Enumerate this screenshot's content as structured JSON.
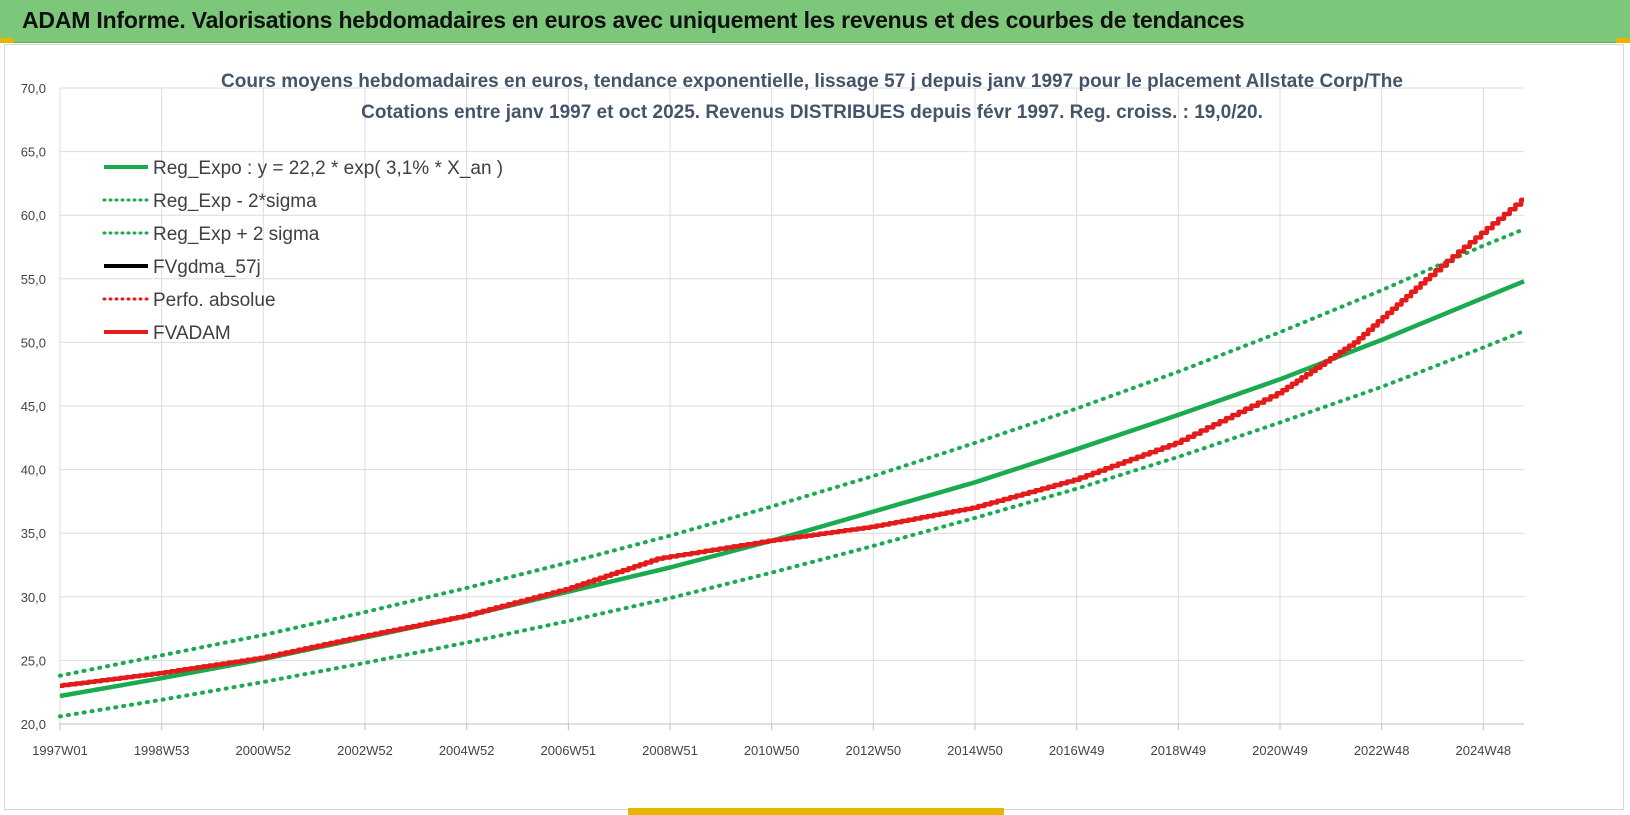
{
  "banner": {
    "title": "ADAM Informe. Valorisations hebdomadaires en euros avec uniquement les revenus et des courbes de tendances"
  },
  "chart_data": {
    "type": "line",
    "title": "Cours moyens hebdomadaires en euros, tendance exponentielle, lissage 57 j depuis janv 1997 pour le placement Allstate Corp/The",
    "subtitle": "Cotations entre janv 1997 et oct 2025. Revenus DISTRIBUES depuis févr 1997. Reg. croiss. : 19,0/20.",
    "xlabel": "",
    "ylabel": "",
    "ylim": [
      20,
      70
    ],
    "yticks": [
      "20,0",
      "25,0",
      "30,0",
      "35,0",
      "40,0",
      "45,0",
      "50,0",
      "55,0",
      "60,0",
      "65,0",
      "70,0"
    ],
    "xlim": [
      1997.0,
      2025.8
    ],
    "xticks": [
      {
        "label": "1997W01",
        "x": 1997.0
      },
      {
        "label": "1998W53",
        "x": 1999.0
      },
      {
        "label": "2000W52",
        "x": 2001.0
      },
      {
        "label": "2002W52",
        "x": 2003.0
      },
      {
        "label": "2004W52",
        "x": 2005.0
      },
      {
        "label": "2006W51",
        "x": 2007.0
      },
      {
        "label": "2008W51",
        "x": 2009.0
      },
      {
        "label": "2010W50",
        "x": 2011.0
      },
      {
        "label": "2012W50",
        "x": 2013.0
      },
      {
        "label": "2014W50",
        "x": 2015.0
      },
      {
        "label": "2016W49",
        "x": 2017.0
      },
      {
        "label": "2018W49",
        "x": 2019.0
      },
      {
        "label": "2020W49",
        "x": 2021.0
      },
      {
        "label": "2022W48",
        "x": 2023.0
      },
      {
        "label": "2024W48",
        "x": 2025.0
      }
    ],
    "grid": true,
    "legend_position": "top-left",
    "series": [
      {
        "name": "Reg_Expo : y = 22,2 * exp( 3,1% *  X_an )",
        "color": "#1aaa4f",
        "style": "solid",
        "x": [
          1997.0,
          1999.0,
          2001.0,
          2003.0,
          2005.0,
          2007.0,
          2009.0,
          2011.0,
          2013.0,
          2015.0,
          2017.0,
          2019.0,
          2021.0,
          2023.0,
          2025.0,
          2025.8
        ],
        "y": [
          22.2,
          23.6,
          25.1,
          26.8,
          28.5,
          30.4,
          32.3,
          34.4,
          36.7,
          39.0,
          41.6,
          44.3,
          47.1,
          50.2,
          53.5,
          54.8
        ]
      },
      {
        "name": "Reg_Exp - 2*sigma",
        "color": "#1aaa4f",
        "style": "dotted",
        "x": [
          1997.0,
          1999.0,
          2001.0,
          2003.0,
          2005.0,
          2007.0,
          2009.0,
          2011.0,
          2013.0,
          2015.0,
          2017.0,
          2019.0,
          2021.0,
          2023.0,
          2025.0,
          2025.8
        ],
        "y": [
          20.6,
          21.9,
          23.3,
          24.8,
          26.4,
          28.1,
          29.9,
          31.9,
          34.0,
          36.2,
          38.5,
          41.0,
          43.7,
          46.5,
          49.6,
          50.9
        ]
      },
      {
        "name": "Reg_Exp + 2 sigma",
        "color": "#1aaa4f",
        "style": "dotted",
        "x": [
          1997.0,
          1999.0,
          2001.0,
          2003.0,
          2005.0,
          2007.0,
          2009.0,
          2011.0,
          2013.0,
          2015.0,
          2017.0,
          2019.0,
          2021.0,
          2023.0,
          2025.0,
          2025.8
        ],
        "y": [
          23.8,
          25.4,
          27.0,
          28.8,
          30.7,
          32.7,
          34.8,
          37.1,
          39.5,
          42.1,
          44.8,
          47.7,
          50.8,
          54.1,
          57.6,
          58.9
        ]
      },
      {
        "name": "FVgdma_57j",
        "color": "#000000",
        "style": "solid",
        "x": [
          1997.0,
          1999.0,
          2001.0,
          2003.0,
          2005.0,
          2007.0,
          2008.8,
          2011.0,
          2013.0,
          2015.0,
          2017.0,
          2019.0,
          2021.0,
          2022.5,
          2024.0,
          2025.8
        ],
        "y": [
          23.0,
          24.0,
          25.2,
          26.9,
          28.5,
          30.6,
          33.0,
          34.4,
          35.5,
          37.0,
          39.2,
          42.1,
          46.0,
          50.0,
          55.3,
          61.2
        ]
      },
      {
        "name": "Perfo. absolue",
        "color": "#e31b1b",
        "style": "dotted",
        "x": [],
        "y": []
      },
      {
        "name": "FVADAM",
        "color": "#e31b1b",
        "style": "solid",
        "x": [
          1997.0,
          1999.0,
          2001.0,
          2003.0,
          2005.0,
          2007.0,
          2008.8,
          2011.0,
          2013.0,
          2015.0,
          2017.0,
          2019.0,
          2021.0,
          2022.5,
          2024.0,
          2025.8
        ],
        "y": [
          23.0,
          24.0,
          25.2,
          26.9,
          28.5,
          30.6,
          33.0,
          34.4,
          35.5,
          37.0,
          39.2,
          42.1,
          46.0,
          50.0,
          55.3,
          61.2
        ]
      }
    ]
  }
}
